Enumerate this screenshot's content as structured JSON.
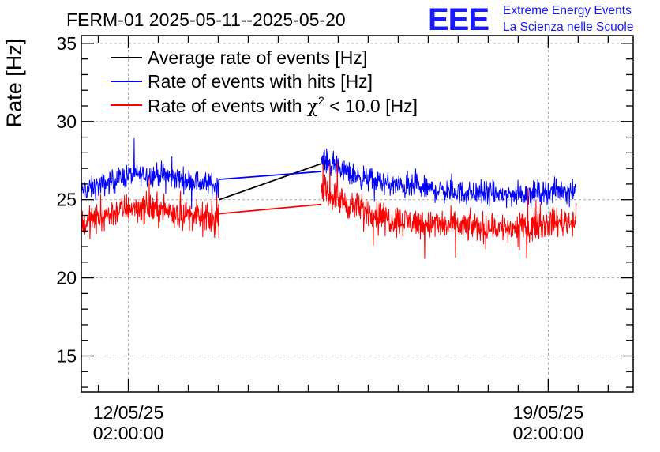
{
  "header": {
    "title": "FERM-01 2025-05-11--2025-05-20",
    "logo_text": "EEE",
    "logo_line1": "Extreme Energy Events",
    "logo_line2": "La Scienza nelle Scuole"
  },
  "colors": {
    "average": "#000000",
    "hits": "#0000ff",
    "chi2": "#ff0000",
    "logo": "#1a1aff",
    "grid": "#aaaaaa"
  },
  "chart_data": {
    "type": "line",
    "title": "FERM-01 2025-05-11--2025-05-20",
    "xlabel": "",
    "ylabel": "Rate [Hz]",
    "ylim": [
      12.7,
      35.5
    ],
    "y_ticks": [
      15,
      20,
      25,
      30,
      35
    ],
    "x_unit": "days since 2025-05-11 00:00",
    "xlim": [
      0.3,
      9.5
    ],
    "x_ticks": [
      {
        "x": 1.0833,
        "line1": "12/05/25",
        "line2": "02:00:00"
      },
      {
        "x": 8.0833,
        "line1": "19/05/25",
        "line2": "02:00:00"
      }
    ],
    "grid": true,
    "legend_position": "top-left",
    "legend": [
      {
        "label": "Average rate of events [Hz]",
        "color": "#000000"
      },
      {
        "label": "Rate of events with hits [Hz]",
        "color": "#0000ff"
      },
      {
        "label_prefix": "Rate of events with ",
        "label_symbol": "χ",
        "label_sup": "2",
        "label_suffix": " < 10.0 [Hz]",
        "color": "#ff0000"
      }
    ],
    "series": [
      {
        "name": "Average rate of events [Hz]",
        "color": "#000000",
        "x": [
          2.6,
          4.3
        ],
        "y": [
          25.0,
          27.3
        ]
      },
      {
        "name": "Rate of events with hits [Hz]",
        "color": "#0000ff",
        "segments": [
          {
            "x_start": 0.2,
            "x_end": 2.6,
            "center": [
              [
                0.2,
                25.4
              ],
              [
                0.7,
                26.0
              ],
              [
                1.1,
                26.6
              ],
              [
                1.6,
                26.6
              ],
              [
                2.1,
                26.2
              ],
              [
                2.6,
                25.9
              ]
            ],
            "noise": 1.1
          },
          {
            "x_start": 4.3,
            "x_end": 8.55,
            "center": [
              [
                4.3,
                27.6
              ],
              [
                4.8,
                26.6
              ],
              [
                5.5,
                25.9
              ],
              [
                6.5,
                25.5
              ],
              [
                7.5,
                25.3
              ],
              [
                8.55,
                25.7
              ]
            ],
            "noise": 1.1
          }
        ],
        "gap_line": {
          "x": [
            2.6,
            4.3
          ],
          "y": [
            26.3,
            26.8
          ]
        }
      },
      {
        "name": "Rate of events with χ2 < 10.0 [Hz]",
        "color": "#ff0000",
        "segments": [
          {
            "x_start": 0.2,
            "x_end": 2.6,
            "center": [
              [
                0.2,
                23.3
              ],
              [
                0.7,
                24.0
              ],
              [
                1.1,
                24.5
              ],
              [
                1.6,
                24.4
              ],
              [
                2.1,
                24.0
              ],
              [
                2.6,
                23.6
              ]
            ],
            "noise": 1.4
          },
          {
            "x_start": 4.3,
            "x_end": 8.55,
            "center": [
              [
                4.3,
                25.7
              ],
              [
                4.8,
                24.6
              ],
              [
                5.5,
                23.7
              ],
              [
                6.5,
                23.3
              ],
              [
                7.5,
                23.2
              ],
              [
                8.55,
                23.7
              ]
            ],
            "noise": 1.4
          }
        ],
        "gap_line": {
          "x": [
            2.6,
            4.3
          ],
          "y": [
            24.1,
            24.7
          ]
        }
      }
    ]
  }
}
